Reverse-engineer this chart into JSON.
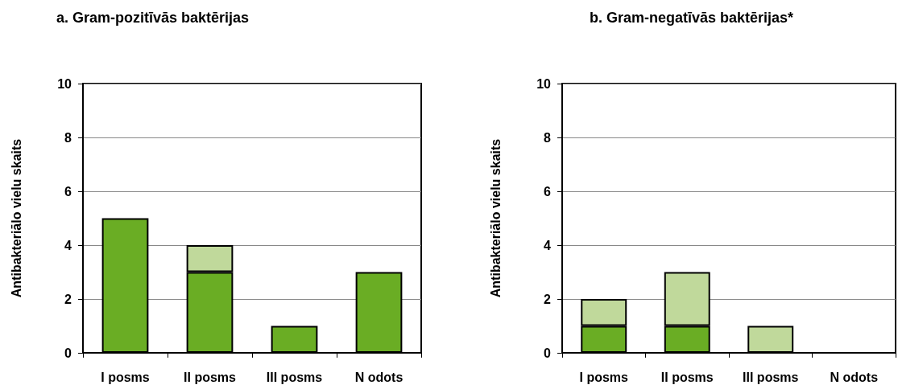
{
  "chart_data": [
    {
      "type": "bar",
      "title": "a. Gram-pozitīvās baktērijas",
      "ylabel": "Antibakteriālo vielu skaits",
      "categories": [
        "I posms",
        "II posms",
        "III posms",
        "N odots"
      ],
      "stacked": true,
      "ylim": [
        0,
        10
      ],
      "yticks": [
        0,
        2,
        4,
        6,
        8,
        10
      ],
      "grid": "y",
      "series": [
        {
          "color": "#6aad24",
          "values": [
            5,
            3,
            1,
            3
          ]
        },
        {
          "color": "#c0d99b",
          "values": [
            null,
            1,
            null,
            null
          ]
        }
      ]
    },
    {
      "type": "bar",
      "title": "b. Gram-negatīvās baktērijas*",
      "ylabel": "Antibakteriālo vielu skaits",
      "categories": [
        "I posms",
        "II posms",
        "III posms",
        "N odots"
      ],
      "stacked": true,
      "ylim": [
        0,
        10
      ],
      "yticks": [
        0,
        2,
        4,
        6,
        8,
        10
      ],
      "grid": "y",
      "series": [
        {
          "color": "#6aad24",
          "values": [
            1,
            1,
            null,
            null
          ]
        },
        {
          "color": "#c0d99b",
          "values": [
            1,
            2,
            1,
            null
          ]
        }
      ]
    }
  ]
}
